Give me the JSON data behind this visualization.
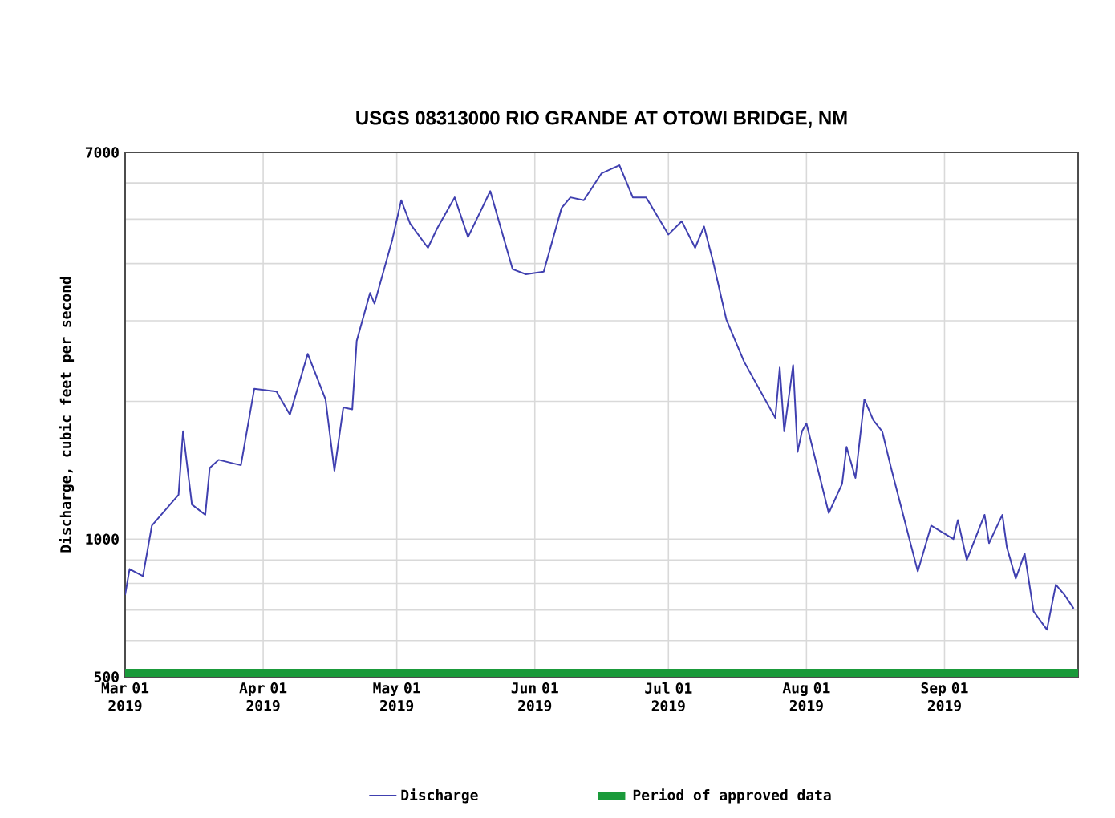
{
  "chart_data": {
    "type": "line",
    "title": "USGS 08313000 RIO GRANDE AT OTOWI BRIDGE, NM",
    "ylabel": "Discharge, cubic feet per second",
    "log": "y",
    "grid": true,
    "legend": "bottom",
    "marker": "none",
    "line_style": "solid",
    "xlim": [
      "2019-03-01",
      "2019-10-01"
    ],
    "xticks": [
      {
        "value": "2019-03-01",
        "label": "Mar 01 2019"
      },
      {
        "value": "2019-04-01",
        "label": "Apr 01 2019"
      },
      {
        "value": "2019-05-01",
        "label": "May 01 2019"
      },
      {
        "value": "2019-06-01",
        "label": "Jun 01 2019"
      },
      {
        "value": "2019-07-01",
        "label": "Jul 01 2019"
      },
      {
        "value": "2019-08-01",
        "label": "Aug 01 2019"
      },
      {
        "value": "2019-09-01",
        "label": "Sep 01 2019"
      }
    ],
    "ylim": [
      500,
      7000
    ],
    "yticks": [
      500,
      {
        "value": 600,
        "label": null
      },
      {
        "value": 700,
        "label": null
      },
      {
        "value": 800,
        "label": null
      },
      {
        "value": 900,
        "label": null
      },
      1000,
      {
        "value": 2000,
        "label": null
      },
      {
        "value": 3000,
        "label": null
      },
      {
        "value": 4000,
        "label": null
      },
      {
        "value": 5000,
        "label": null
      },
      {
        "value": 6000,
        "label": null
      },
      7000
    ],
    "series": [
      {
        "name": "Discharge",
        "color": "#4040b0",
        "x": [
          "2019-03-01",
          "2019-03-02",
          "2019-03-05",
          "2019-03-07",
          "2019-03-13",
          "2019-03-14",
          "2019-03-16",
          "2019-03-19",
          "2019-03-20",
          "2019-03-22",
          "2019-03-27",
          "2019-03-30",
          "2019-04-04",
          "2019-04-07",
          "2019-04-11",
          "2019-04-15",
          "2019-04-17",
          "2019-04-19",
          "2019-04-21",
          "2019-04-22",
          "2019-04-25",
          "2019-04-26",
          "2019-04-30",
          "2019-05-02",
          "2019-05-04",
          "2019-05-08",
          "2019-05-10",
          "2019-05-14",
          "2019-05-17",
          "2019-05-22",
          "2019-05-27",
          "2019-05-30",
          "2019-06-03",
          "2019-06-07",
          "2019-06-09",
          "2019-06-12",
          "2019-06-16",
          "2019-06-20",
          "2019-06-23",
          "2019-06-26",
          "2019-07-01",
          "2019-07-04",
          "2019-07-07",
          "2019-07-09",
          "2019-07-11",
          "2019-07-14",
          "2019-07-18",
          "2019-07-25",
          "2019-07-26",
          "2019-07-27",
          "2019-07-29",
          "2019-07-30",
          "2019-07-31",
          "2019-08-01",
          "2019-08-06",
          "2019-08-09",
          "2019-08-10",
          "2019-08-12",
          "2019-08-14",
          "2019-08-16",
          "2019-08-18",
          "2019-08-20",
          "2019-08-24",
          "2019-08-26",
          "2019-08-29",
          "2019-09-03",
          "2019-09-04",
          "2019-09-06",
          "2019-09-10",
          "2019-09-11",
          "2019-09-14",
          "2019-09-15",
          "2019-09-17",
          "2019-09-19",
          "2019-09-21",
          "2019-09-24",
          "2019-09-26",
          "2019-09-28",
          "2019-09-30"
        ],
        "values": [
          755,
          860,
          830,
          1070,
          1250,
          1720,
          1190,
          1130,
          1430,
          1490,
          1450,
          2130,
          2100,
          1870,
          2540,
          2020,
          1410,
          1940,
          1920,
          2710,
          3450,
          3270,
          4510,
          5500,
          4890,
          4330,
          4760,
          5580,
          4570,
          5760,
          3890,
          3790,
          3840,
          5290,
          5580,
          5500,
          6300,
          6560,
          5580,
          5580,
          4630,
          4950,
          4330,
          4820,
          4050,
          3020,
          2440,
          1840,
          2370,
          1720,
          2400,
          1550,
          1720,
          1790,
          1140,
          1320,
          1590,
          1360,
          2020,
          1820,
          1720,
          1430,
          1010,
          850,
          1070,
          1000,
          1100,
          900,
          1130,
          980,
          1130,
          960,
          820,
          930,
          695,
          634,
          795,
          754,
          705
        ]
      },
      {
        "name": "Period of approved data",
        "color": "#1a9a3a",
        "x": [
          "2019-03-01",
          "2019-10-01"
        ],
        "values": [
          510,
          510
        ]
      }
    ]
  }
}
